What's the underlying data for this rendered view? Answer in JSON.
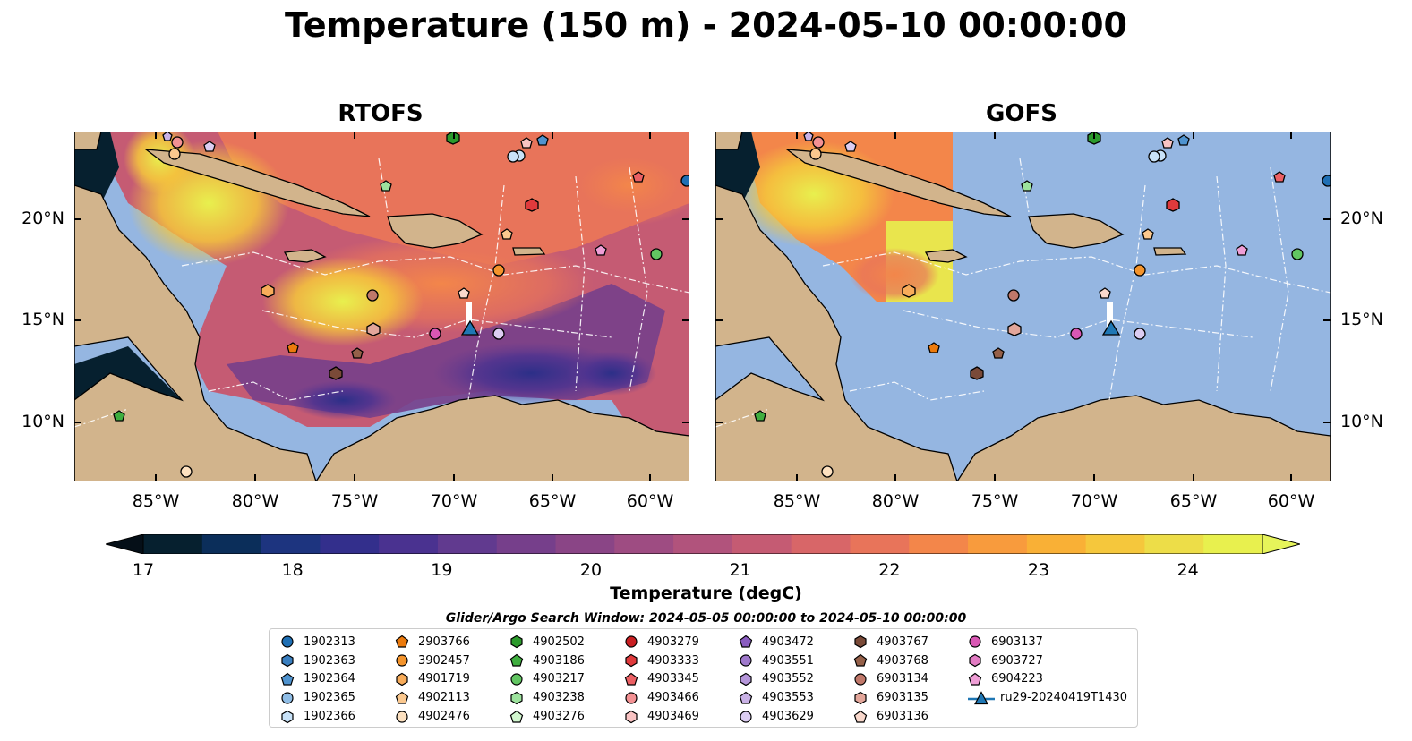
{
  "title": "Temperature (150 m) - 2024-05-10 00:00:00",
  "panels": [
    {
      "name": "RTOFS",
      "mode": "full"
    },
    {
      "name": "GOFS",
      "mode": "partial"
    }
  ],
  "lon_ticks": [
    "85°W",
    "80°W",
    "75°W",
    "70°W",
    "65°W",
    "60°W"
  ],
  "lat_ticks": [
    "20°N",
    "15°N",
    "10°N"
  ],
  "colorbar": {
    "title": "Temperature (degC)",
    "min": 17,
    "max": 24.5,
    "ticks": [
      "17",
      "18",
      "19",
      "20",
      "21",
      "22",
      "23",
      "24"
    ],
    "colors": [
      "#06202f",
      "#0b2e5a",
      "#1d347f",
      "#332f8c",
      "#4a3290",
      "#613a8f",
      "#763f8b",
      "#8a4586",
      "#9e4c82",
      "#b1537c",
      "#c55b73",
      "#d86668",
      "#e8745a",
      "#f3864a",
      "#f89b3d",
      "#f9b036",
      "#f5c73c",
      "#eddd48",
      "#e8f04e"
    ],
    "over_color": "#e6f45a",
    "under_color": "#050f18"
  },
  "search_window": "Glider/Argo Search Window: 2024-05-05 00:00:00 to 2024-05-10 00:00:00",
  "map_colors": {
    "ocean": "#95b6e1",
    "land": "#d2b48c",
    "coast": "#000000"
  },
  "legend": {
    "columns": [
      [
        {
          "label": "1902313",
          "marker": "circle",
          "color": "#1f6fb4"
        },
        {
          "label": "1902363",
          "marker": "hexagon",
          "color": "#3a7fc0"
        },
        {
          "label": "1902364",
          "marker": "pentagon",
          "color": "#4f93cf"
        },
        {
          "label": "1902365",
          "marker": "circle",
          "color": "#8fbde6"
        },
        {
          "label": "1902366",
          "marker": "hexagon",
          "color": "#c8e2f8"
        }
      ],
      [
        {
          "label": "2903766",
          "marker": "pentagon",
          "color": "#ec7a0c"
        },
        {
          "label": "3902457",
          "marker": "circle",
          "color": "#f4942c"
        },
        {
          "label": "4901719",
          "marker": "hexagon",
          "color": "#f8ac5a"
        },
        {
          "label": "4902113",
          "marker": "pentagon",
          "color": "#fbc88e"
        },
        {
          "label": "4902476",
          "marker": "circle",
          "color": "#fde1c0"
        }
      ],
      [
        {
          "label": "4902502",
          "marker": "hexagon",
          "color": "#2c9a2c"
        },
        {
          "label": "4903186",
          "marker": "pentagon",
          "color": "#3fae3f"
        },
        {
          "label": "4903217",
          "marker": "circle",
          "color": "#62c662"
        },
        {
          "label": "4903238",
          "marker": "hexagon",
          "color": "#9de39d"
        },
        {
          "label": "4903276",
          "marker": "pentagon",
          "color": "#d2f7cf"
        }
      ],
      [
        {
          "label": "4903279",
          "marker": "circle",
          "color": "#c91f22"
        },
        {
          "label": "4903333",
          "marker": "hexagon",
          "color": "#e03a3c"
        },
        {
          "label": "4903345",
          "marker": "pentagon",
          "color": "#ec6064"
        },
        {
          "label": "4903466",
          "marker": "circle",
          "color": "#f39193"
        },
        {
          "label": "4903469",
          "marker": "hexagon",
          "color": "#f9c3c3"
        }
      ],
      [
        {
          "label": "4903472",
          "marker": "pentagon",
          "color": "#8a5cc0"
        },
        {
          "label": "4903551",
          "marker": "circle",
          "color": "#9f79cc"
        },
        {
          "label": "4903552",
          "marker": "hexagon",
          "color": "#b596da"
        },
        {
          "label": "4903553",
          "marker": "pentagon",
          "color": "#c9b1e6"
        },
        {
          "label": "4903629",
          "marker": "circle",
          "color": "#dccdf2"
        }
      ],
      [
        {
          "label": "4903767",
          "marker": "hexagon",
          "color": "#7a4a38"
        },
        {
          "label": "4903768",
          "marker": "pentagon",
          "color": "#956049"
        },
        {
          "label": "6903134",
          "marker": "circle",
          "color": "#c0786a"
        },
        {
          "label": "6903135",
          "marker": "hexagon",
          "color": "#e3a69a"
        },
        {
          "label": "6903136",
          "marker": "pentagon",
          "color": "#f9d8cc"
        }
      ],
      [
        {
          "label": "6903137",
          "marker": "circle",
          "color": "#d957b4"
        },
        {
          "label": "6903727",
          "marker": "hexagon",
          "color": "#e37cc4"
        },
        {
          "label": "6904223",
          "marker": "pentagon",
          "color": "#ef9ed6"
        },
        {
          "label": "ru29-20240419T1430",
          "marker": "triangle-line",
          "color": "#1f77b4"
        }
      ]
    ]
  }
}
